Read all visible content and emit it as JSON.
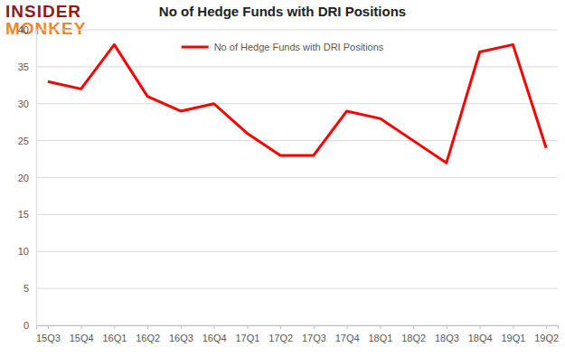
{
  "chart_data": {
    "type": "line",
    "title": "No of Hedge Funds with DRI Positions",
    "annotations": [
      "INSIDER",
      "MONKEY"
    ],
    "categories": [
      "15Q3",
      "15Q4",
      "16Q1",
      "16Q2",
      "16Q3",
      "16Q4",
      "17Q1",
      "17Q2",
      "17Q3",
      "17Q4",
      "18Q1",
      "18Q2",
      "18Q3",
      "18Q4",
      "19Q1",
      "19Q2"
    ],
    "series": [
      {
        "name": "No of Hedge Funds with DRI Positions",
        "color": "#ff0000",
        "values": [
          33,
          32,
          38,
          31,
          29,
          30,
          26,
          23,
          23,
          29,
          28,
          25,
          22,
          37,
          38,
          24
        ]
      }
    ],
    "ylim": [
      0,
      40
    ],
    "yticks": [
      0,
      5,
      10,
      15,
      20,
      25,
      30,
      35,
      40
    ],
    "grid": true,
    "legend": "top"
  }
}
